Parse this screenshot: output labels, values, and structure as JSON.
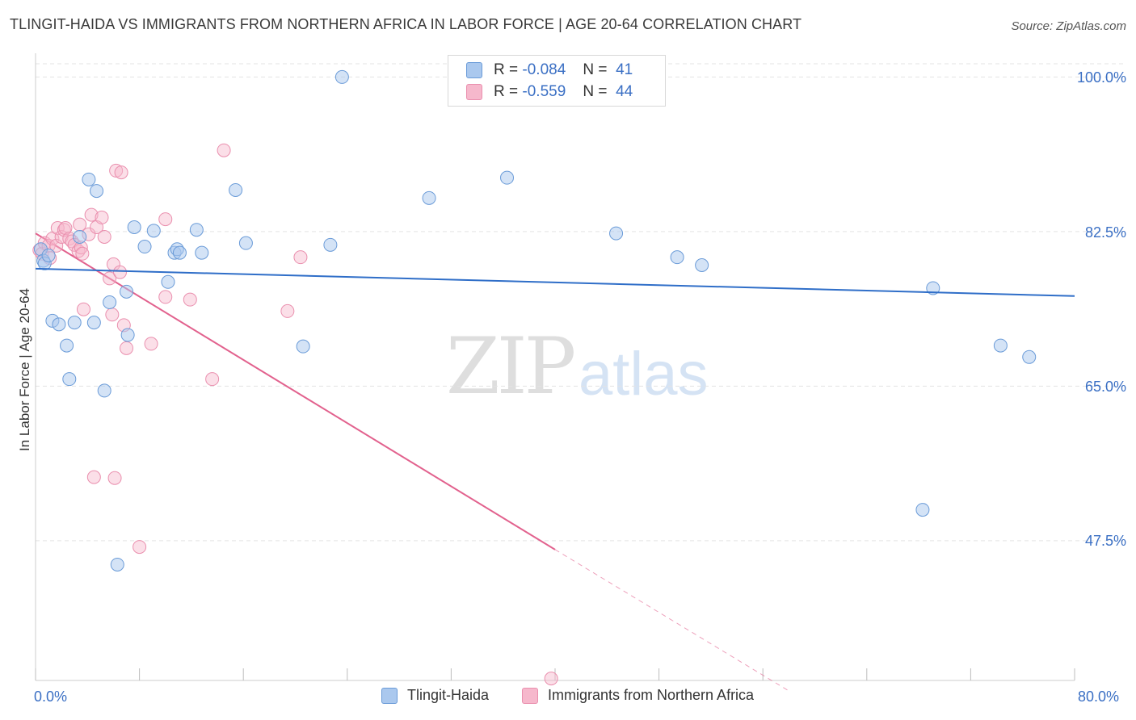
{
  "title": "TLINGIT-HAIDA VS IMMIGRANTS FROM NORTHERN AFRICA IN LABOR FORCE | AGE 20-64 CORRELATION CHART",
  "source": "Source: ZipAtlas.com",
  "watermark": {
    "zip": "ZIP",
    "atlas": "atlas"
  },
  "legend": {
    "rows": [
      {
        "r_label": "R =",
        "r_value": "-0.084",
        "n_label": "N =",
        "n_value": "41"
      },
      {
        "r_label": "R =",
        "r_value": "-0.559",
        "n_label": "N =",
        "n_value": "44"
      }
    ]
  },
  "bottom_legend": [
    "Tlingit-Haida",
    "Immigrants from Northern Africa"
  ],
  "colors": {
    "blue_fill": "#aac8ee",
    "blue_stroke": "#6a9bd8",
    "blue_line": "#2f6ec8",
    "pink_fill": "#f6b8cc",
    "pink_stroke": "#ea8fae",
    "pink_line": "#e2628e",
    "grid": "#e3e3e3",
    "tick_text": "#3a6fc4"
  },
  "chart_data": {
    "type": "scatter",
    "title": "TLINGIT-HAIDA VS IMMIGRANTS FROM NORTHERN AFRICA IN LABOR FORCE | AGE 20-64 CORRELATION CHART",
    "xlabel": "",
    "ylabel": "In Labor Force | Age 20-64",
    "xlim": [
      0,
      80
    ],
    "ylim": [
      31.5,
      101.5
    ],
    "x_tick_labels": [
      "0.0%",
      "80.0%"
    ],
    "y_ticks": [
      47.5,
      65.0,
      82.5,
      100.0
    ],
    "y_tick_labels": [
      "47.5%",
      "65.0%",
      "82.5%",
      "100.0%"
    ],
    "grid": true,
    "series": [
      {
        "name": "Tlingit-Haida",
        "color": "#aac8ee",
        "R": -0.084,
        "N": 41,
        "trend": {
          "x": [
            0,
            80
          ],
          "y": [
            78.3,
            75.2
          ]
        },
        "points": [
          [
            0.4,
            80.5
          ],
          [
            0.6,
            79.2
          ],
          [
            0.7,
            78.9
          ],
          [
            1.0,
            79.8
          ],
          [
            1.3,
            72.4
          ],
          [
            1.8,
            72.0
          ],
          [
            2.4,
            69.6
          ],
          [
            2.6,
            65.8
          ],
          [
            3.0,
            72.2
          ],
          [
            3.4,
            81.9
          ],
          [
            4.1,
            88.4
          ],
          [
            4.5,
            72.2
          ],
          [
            4.7,
            87.1
          ],
          [
            5.3,
            64.5
          ],
          [
            5.7,
            74.5
          ],
          [
            6.3,
            44.8
          ],
          [
            7.0,
            75.7
          ],
          [
            7.1,
            70.8
          ],
          [
            7.6,
            83.0
          ],
          [
            8.4,
            80.8
          ],
          [
            9.1,
            82.6
          ],
          [
            10.2,
            76.8
          ],
          [
            10.7,
            80.1
          ],
          [
            10.9,
            80.5
          ],
          [
            11.1,
            80.1
          ],
          [
            12.4,
            82.7
          ],
          [
            12.8,
            80.1
          ],
          [
            15.4,
            87.2
          ],
          [
            16.2,
            81.2
          ],
          [
            20.6,
            69.5
          ],
          [
            22.7,
            81.0
          ],
          [
            23.6,
            100.0
          ],
          [
            30.3,
            86.3
          ],
          [
            36.3,
            88.6
          ],
          [
            44.7,
            82.3
          ],
          [
            49.4,
            79.6
          ],
          [
            51.3,
            78.7
          ],
          [
            68.3,
            51.0
          ],
          [
            69.1,
            76.1
          ],
          [
            74.3,
            69.6
          ],
          [
            76.5,
            68.3
          ]
        ]
      },
      {
        "name": "Immigrants from Northern Africa",
        "color": "#f6b8cc",
        "R": -0.559,
        "N": 44,
        "trend": {
          "x": [
            0,
            40
          ],
          "y": [
            82.3,
            46.5
          ]
        },
        "trend_dashed": {
          "x": [
            40,
            58
          ],
          "y": [
            46.5,
            30.5
          ]
        },
        "points": [
          [
            0.3,
            80.4
          ],
          [
            0.5,
            80.0
          ],
          [
            0.7,
            81.2
          ],
          [
            1.0,
            80.9
          ],
          [
            1.3,
            81.7
          ],
          [
            1.6,
            80.9
          ],
          [
            1.7,
            82.9
          ],
          [
            2.0,
            81.9
          ],
          [
            2.2,
            82.7
          ],
          [
            2.3,
            82.9
          ],
          [
            2.6,
            81.7
          ],
          [
            2.8,
            81.4
          ],
          [
            3.0,
            81.0
          ],
          [
            3.3,
            80.3
          ],
          [
            3.5,
            80.7
          ],
          [
            3.4,
            83.3
          ],
          [
            3.6,
            80.0
          ],
          [
            3.7,
            73.7
          ],
          [
            4.1,
            82.2
          ],
          [
            4.3,
            84.4
          ],
          [
            4.5,
            54.7
          ],
          [
            4.7,
            83.0
          ],
          [
            5.1,
            84.1
          ],
          [
            5.3,
            81.9
          ],
          [
            5.7,
            77.2
          ],
          [
            5.9,
            73.1
          ],
          [
            6.0,
            78.8
          ],
          [
            6.1,
            54.6
          ],
          [
            6.2,
            89.4
          ],
          [
            6.5,
            77.9
          ],
          [
            6.6,
            89.2
          ],
          [
            6.8,
            71.9
          ],
          [
            7.0,
            69.3
          ],
          [
            8.0,
            46.8
          ],
          [
            8.9,
            69.8
          ],
          [
            10.0,
            75.1
          ],
          [
            10.0,
            83.9
          ],
          [
            11.9,
            74.8
          ],
          [
            13.6,
            65.8
          ],
          [
            14.5,
            91.7
          ],
          [
            19.4,
            73.5
          ],
          [
            20.4,
            79.6
          ],
          [
            39.7,
            31.9
          ],
          [
            1.1,
            79.5
          ]
        ]
      }
    ]
  }
}
